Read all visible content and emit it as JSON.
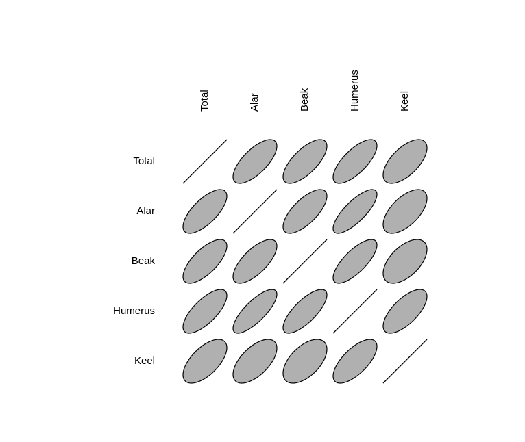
{
  "chart_data": {
    "type": "correlation-ellipse-matrix",
    "variables": [
      "Total",
      "Alar",
      "Beak",
      "Humerus",
      "Keel"
    ],
    "correlations": [
      [
        1.0,
        0.7,
        0.7,
        0.72,
        0.62
      ],
      [
        0.7,
        1.0,
        0.7,
        0.78,
        0.6
      ],
      [
        0.7,
        0.7,
        1.0,
        0.75,
        0.55
      ],
      [
        0.72,
        0.78,
        0.75,
        1.0,
        0.68
      ],
      [
        0.62,
        0.6,
        0.55,
        0.68,
        1.0
      ]
    ],
    "colors": {
      "fill": "#b0b0b0",
      "stroke": "#000000"
    },
    "grid": false,
    "legend": "none"
  }
}
